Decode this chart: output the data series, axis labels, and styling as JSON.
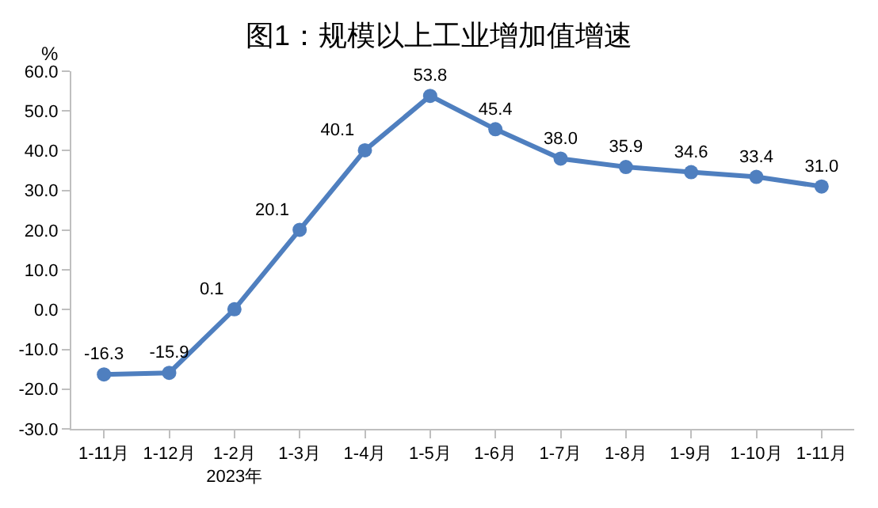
{
  "chart_data": {
    "type": "line",
    "title": "图1：规模以上工业增加值增速",
    "ylabel": "%",
    "categories": [
      "1-11月",
      "1-12月",
      "1-2月\n2023年",
      "1-3月",
      "1-4月",
      "1-5月",
      "1-6月",
      "1-7月",
      "1-8月",
      "1-9月",
      "1-10月",
      "1-11月"
    ],
    "series": [
      {
        "color": "#4f7fbf",
        "values": [
          -16.3,
          -15.9,
          0.1,
          20.1,
          40.1,
          53.8,
          45.4,
          38.0,
          35.9,
          34.6,
          33.4,
          31.0
        ],
        "value_labels": [
          "-16.3",
          "-15.9",
          "0.1",
          "20.1",
          "40.1",
          "53.8",
          "45.4",
          "38.0",
          "35.9",
          "34.6",
          "33.4",
          "31.0"
        ]
      }
    ],
    "ylim": [
      -30,
      60
    ],
    "yticks": [
      {
        "value": -30,
        "label": "-30.0"
      },
      {
        "value": -20,
        "label": "-20.0"
      },
      {
        "value": -10,
        "label": "-10.0"
      },
      {
        "value": 0,
        "label": "0.0"
      },
      {
        "value": 10,
        "label": "10.0"
      },
      {
        "value": 20,
        "label": "20.0"
      },
      {
        "value": 30,
        "label": "30.0"
      },
      {
        "value": 40,
        "label": "40.0"
      },
      {
        "value": 50,
        "label": "50.0"
      },
      {
        "value": 60,
        "label": "60.0"
      }
    ],
    "marker": "circle",
    "line_style": "solid",
    "grid": false
  }
}
